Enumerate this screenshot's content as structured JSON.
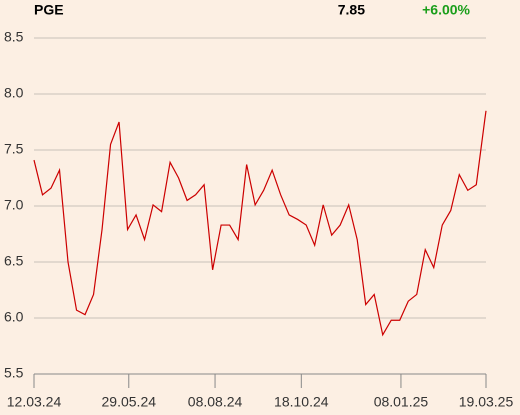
{
  "header": {
    "name": "PGE",
    "price": "7.85",
    "change": "+6.00%"
  },
  "chart_data": {
    "type": "line",
    "x": [
      "2024-03-12",
      "2024-03-19",
      "2024-03-26",
      "2024-04-02",
      "2024-04-09",
      "2024-04-16",
      "2024-04-23",
      "2024-04-30",
      "2024-05-07",
      "2024-05-14",
      "2024-05-21",
      "2024-05-28",
      "2024-06-04",
      "2024-06-11",
      "2024-06-18",
      "2024-06-25",
      "2024-07-02",
      "2024-07-09",
      "2024-07-16",
      "2024-07-23",
      "2024-07-30",
      "2024-08-06",
      "2024-08-13",
      "2024-08-20",
      "2024-08-27",
      "2024-09-03",
      "2024-09-10",
      "2024-09-17",
      "2024-09-24",
      "2024-10-01",
      "2024-10-08",
      "2024-10-15",
      "2024-10-22",
      "2024-10-29",
      "2024-11-05",
      "2024-11-12",
      "2024-11-19",
      "2024-11-26",
      "2024-12-03",
      "2024-12-10",
      "2024-12-17",
      "2024-12-24",
      "2024-12-31",
      "2025-01-07",
      "2025-01-14",
      "2025-01-21",
      "2025-01-28",
      "2025-02-04",
      "2025-02-11",
      "2025-02-18",
      "2025-02-25",
      "2025-03-04",
      "2025-03-11",
      "2025-03-18",
      "2025-03-19"
    ],
    "series": [
      {
        "name": "PGE",
        "color": "#cc0000",
        "values": [
          7.41,
          7.1,
          7.16,
          7.32,
          6.5,
          6.07,
          6.03,
          6.21,
          6.79,
          7.55,
          7.75,
          6.79,
          6.92,
          6.7,
          7.01,
          6.95,
          7.39,
          7.25,
          7.05,
          7.1,
          7.19,
          6.43,
          6.83,
          6.83,
          6.7,
          7.37,
          7.01,
          7.14,
          7.32,
          7.1,
          6.92,
          6.88,
          6.83,
          6.65,
          7.01,
          6.74,
          6.83,
          7.01,
          6.7,
          6.12,
          6.21,
          5.85,
          5.98,
          5.98,
          6.15,
          6.21,
          6.61,
          6.45,
          6.83,
          6.96,
          7.28,
          7.14,
          7.19,
          7.77,
          7.85
        ]
      }
    ],
    "xlim": [
      "2024-03-12",
      "2025-03-19"
    ],
    "xticks": [
      {
        "value": "2024-03-12",
        "label": "12.03.24"
      },
      {
        "value": "2024-05-29",
        "label": "29.05.24"
      },
      {
        "value": "2024-08-08",
        "label": "08.08.24"
      },
      {
        "value": "2024-10-18",
        "label": "18.10.24"
      },
      {
        "value": "2025-01-08",
        "label": "08.01.25"
      },
      {
        "value": "2025-03-19",
        "label": "19.03.25"
      }
    ],
    "ylim": [
      5.5,
      8.5
    ],
    "yticks": [
      5.5,
      {
        "value": 6,
        "label": "6.0"
      },
      6.5,
      {
        "value": 7,
        "label": "7.0"
      },
      7.5,
      {
        "value": 8,
        "label": "8.0"
      },
      8.5
    ],
    "grid": true
  }
}
